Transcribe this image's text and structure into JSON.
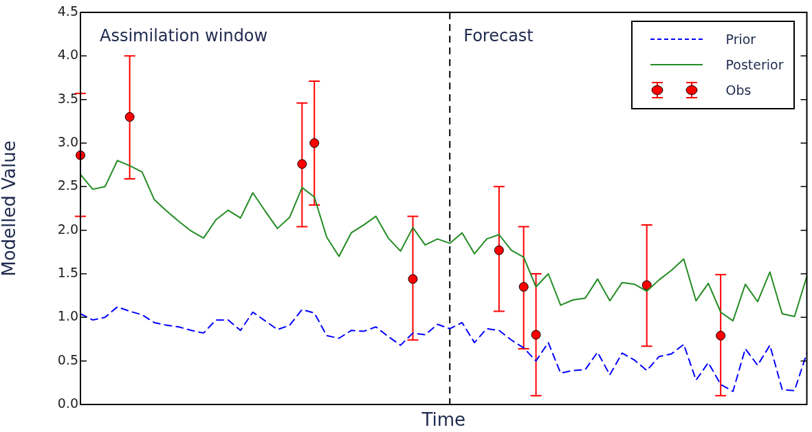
{
  "chart_data": {
    "type": "line",
    "xlabel": "Time",
    "ylabel": "Modelled Value",
    "categories": [
      null,
      null,
      null,
      null,
      null,
      null,
      null,
      null,
      null,
      null,
      null,
      null,
      null,
      null,
      null,
      null,
      null,
      null,
      null,
      null,
      null,
      null,
      null,
      null,
      null,
      null,
      null,
      null,
      null,
      null,
      null,
      null,
      null,
      null,
      null,
      null,
      null,
      null,
      null,
      null,
      null,
      null,
      null,
      null,
      null,
      null,
      null,
      null,
      null,
      null,
      null,
      null,
      null,
      null,
      null,
      null,
      null,
      null,
      null,
      null
    ],
    "ylim": [
      0,
      4.5
    ],
    "yticks": [
      {
        "value": 0,
        "label": "0.0"
      },
      {
        "value": 0.5,
        "label": "0.5"
      },
      {
        "value": 1,
        "label": "1.0"
      },
      {
        "value": 1.5,
        "label": "1.5"
      },
      {
        "value": 2,
        "label": "2.0"
      },
      {
        "value": 2.5,
        "label": "2.5"
      },
      {
        "value": 3,
        "label": "3.0"
      },
      {
        "value": 3.5,
        "label": "3.5"
      },
      {
        "value": 4,
        "label": "4.0"
      },
      {
        "value": 4.5,
        "label": "4.5"
      }
    ],
    "tick_labels": "y",
    "legend": "top right",
    "annotations": [
      "Assimilation window",
      "Forecast"
    ],
    "series": [
      {
        "name": "Prior",
        "type": "line",
        "color": "#0000ff",
        "line_style": "dashed",
        "values": [
          1.04,
          0.97,
          1.0,
          1.12,
          1.07,
          1.03,
          0.94,
          0.91,
          0.89,
          0.85,
          0.82,
          0.97,
          0.97,
          0.85,
          1.06,
          0.96,
          0.86,
          0.91,
          1.09,
          1.05,
          0.79,
          0.76,
          0.85,
          0.84,
          0.89,
          0.78,
          0.68,
          0.82,
          0.8,
          0.92,
          0.87,
          0.94,
          0.71,
          0.87,
          0.85,
          0.74,
          0.65,
          0.5,
          0.71,
          0.36,
          0.39,
          0.4,
          0.6,
          0.34,
          0.59,
          0.51,
          0.39,
          0.55,
          0.58,
          0.69,
          0.28,
          0.48,
          0.23,
          0.15,
          0.64,
          0.45,
          0.68,
          0.17,
          0.16,
          0.59
        ]
      },
      {
        "name": "Posterior",
        "type": "line",
        "color": "#228b22",
        "line_style": "solid",
        "values": [
          2.64,
          2.47,
          2.5,
          2.8,
          2.74,
          2.67,
          2.35,
          2.22,
          2.1,
          1.99,
          1.91,
          2.12,
          2.23,
          2.14,
          2.43,
          2.22,
          2.02,
          2.15,
          2.49,
          2.38,
          1.92,
          1.7,
          1.97,
          2.06,
          2.16,
          1.91,
          1.76,
          2.03,
          1.83,
          1.9,
          1.85,
          1.97,
          1.73,
          1.9,
          1.95,
          1.77,
          1.69,
          1.35,
          1.5,
          1.14,
          1.2,
          1.22,
          1.44,
          1.19,
          1.4,
          1.38,
          1.3,
          1.43,
          1.54,
          1.67,
          1.19,
          1.39,
          1.06,
          0.96,
          1.38,
          1.18,
          1.52,
          1.04,
          1.01,
          1.47
        ]
      },
      {
        "name": "Obs",
        "type": "scatter",
        "color": "#ff0000",
        "marker": "circle",
        "values": [
          2.86,
          null,
          null,
          null,
          3.3,
          null,
          null,
          null,
          null,
          null,
          null,
          null,
          null,
          null,
          null,
          null,
          null,
          null,
          2.76,
          3.0,
          null,
          null,
          null,
          null,
          null,
          null,
          null,
          1.44,
          null,
          null,
          null,
          null,
          null,
          null,
          1.77,
          null,
          1.35,
          0.8,
          null,
          null,
          null,
          null,
          null,
          null,
          null,
          null,
          1.37,
          null,
          null,
          null,
          null,
          null,
          0.79,
          null,
          null,
          null,
          null,
          null,
          null,
          null
        ],
        "errors": [
          [
            2.16,
            3.57
          ],
          null,
          null,
          null,
          [
            2.59,
            4.0
          ],
          null,
          null,
          null,
          null,
          null,
          null,
          null,
          null,
          null,
          null,
          null,
          null,
          null,
          [
            2.04,
            3.46
          ],
          [
            2.29,
            3.71
          ],
          null,
          null,
          null,
          null,
          null,
          null,
          null,
          [
            0.74,
            2.16
          ],
          null,
          null,
          null,
          null,
          null,
          null,
          [
            1.07,
            2.5
          ],
          null,
          [
            0.64,
            2.04
          ],
          [
            0.1,
            1.5
          ],
          null,
          null,
          null,
          null,
          null,
          null,
          null,
          null,
          [
            0.67,
            2.06
          ],
          null,
          null,
          null,
          null,
          null,
          [
            0.1,
            1.49
          ],
          null,
          null,
          null,
          null,
          null,
          null,
          null
        ]
      }
    ]
  }
}
